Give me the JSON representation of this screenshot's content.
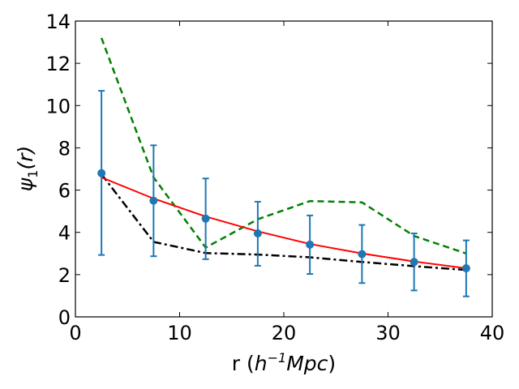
{
  "chart_data": {
    "type": "line",
    "xlabel": {
      "prefix": "r (",
      "base": "h",
      "sup": "−1",
      "rest": "Mpc",
      "suffix": ")"
    },
    "ylabel": {
      "base": "ψ",
      "sub": "1",
      "rest": "(r)"
    },
    "xlim": [
      0,
      40
    ],
    "ylim": [
      0,
      14
    ],
    "x_ticks": [
      "0",
      "10",
      "20",
      "30",
      "40"
    ],
    "y_ticks": [
      "0",
      "2",
      "4",
      "6",
      "8",
      "10",
      "12",
      "14"
    ],
    "grid": false,
    "series": [
      {
        "kind": "errorbar",
        "color": "#1f77b4",
        "x": [
          2.5,
          7.5,
          12.5,
          17.5,
          22.5,
          27.5,
          32.5,
          37.5
        ],
        "y": [
          6.8,
          5.5,
          4.65,
          3.95,
          3.42,
          2.97,
          2.6,
          2.3
        ],
        "yerr_low": [
          2.93,
          2.87,
          2.73,
          2.42,
          2.03,
          1.6,
          1.25,
          0.97
        ],
        "yerr_high": [
          10.7,
          8.12,
          6.55,
          5.45,
          4.8,
          4.35,
          3.95,
          3.62
        ]
      },
      {
        "kind": "solid",
        "color": "#ff0000",
        "x": [
          2.5,
          7.5,
          12.5,
          17.5,
          22.5,
          27.5,
          32.5,
          37.5
        ],
        "y": [
          6.6,
          5.6,
          4.75,
          4.05,
          3.45,
          3.0,
          2.62,
          2.3
        ]
      },
      {
        "kind": "dashed",
        "color": "#008000",
        "x": [
          2.5,
          7.5,
          12.5,
          17.5,
          22.5,
          27.5,
          32.5,
          37.5
        ],
        "y": [
          13.2,
          6.6,
          3.28,
          4.62,
          5.48,
          5.42,
          3.83,
          3.0
        ]
      },
      {
        "kind": "dashdot",
        "color": "#000000",
        "x": [
          2.5,
          7.5,
          12.5,
          17.5,
          22.5,
          27.5,
          32.5,
          37.5
        ],
        "y": [
          6.75,
          3.55,
          3.02,
          2.95,
          2.82,
          2.6,
          2.4,
          2.22
        ]
      }
    ]
  }
}
